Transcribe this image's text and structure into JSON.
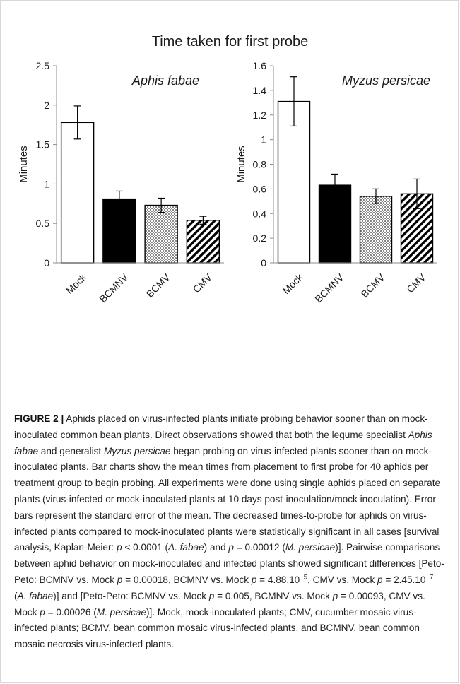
{
  "figure_title": "Time taken for first probe",
  "chart_data": [
    {
      "type": "bar",
      "title": "Aphis fabae",
      "ylabel": "Minutes",
      "xlabel": "",
      "categories": [
        "Mock",
        "BCMNV",
        "BCMV",
        "CMV"
      ],
      "values": [
        1.78,
        0.81,
        0.73,
        0.54
      ],
      "error": [
        0.21,
        0.1,
        0.09,
        0.05
      ],
      "ylim": [
        0,
        2.5
      ],
      "yticks": [
        "0",
        "0.5",
        "1",
        "1.5",
        "2",
        "2.5"
      ],
      "ytick_values": [
        0,
        0.5,
        1,
        1.5,
        2,
        2.5
      ],
      "fills": [
        "white",
        "solid black",
        "dotted",
        "diagonal hatch"
      ],
      "grid": false
    },
    {
      "type": "bar",
      "title": "Myzus persicae",
      "ylabel": "Minutes",
      "xlabel": "",
      "categories": [
        "Mock",
        "BCMNV",
        "BCMV",
        "CMV"
      ],
      "values": [
        1.31,
        0.63,
        0.54,
        0.56
      ],
      "error": [
        0.2,
        0.09,
        0.06,
        0.12
      ],
      "ylim": [
        0,
        1.6
      ],
      "yticks": [
        "0",
        "0.2",
        "0.4",
        "0.6",
        "0.8",
        "1",
        "1.2",
        "1.4",
        "1.6"
      ],
      "ytick_values": [
        0,
        0.2,
        0.4,
        0.6,
        0.8,
        1,
        1.2,
        1.4,
        1.6
      ],
      "fills": [
        "white",
        "solid black",
        "dotted",
        "diagonal hatch"
      ],
      "grid": false
    }
  ],
  "caption": {
    "label": "FIGURE 2 |",
    "parts": [
      {
        "t": " Aphids placed on virus-infected plants initiate probing behavior sooner than on mock-inoculated common bean plants. Direct observations showed that both the legume specialist "
      },
      {
        "t": "Aphis fabae",
        "i": true
      },
      {
        "t": " and generalist "
      },
      {
        "t": "Myzus persicae",
        "i": true
      },
      {
        "t": " began probing on virus-infected plants sooner than on mock-inoculated plants. Bar charts show the mean times from placement to first probe for 40 aphids per treatment group to begin probing. All experiments were done using single aphids placed on separate plants (virus-infected or mock-inoculated plants at 10 days post-inoculation/mock inoculation). Error bars represent the standard error of the mean. The decreased times-to-probe for aphids on virus-infected plants compared to mock-inoculated plants were statistically significant in all cases [survival analysis, Kaplan-Meier: "
      },
      {
        "t": "p",
        "i": true
      },
      {
        "t": " < 0.0001 ("
      },
      {
        "t": "A. fabae",
        "i": true
      },
      {
        "t": ") and "
      },
      {
        "t": "p",
        "i": true
      },
      {
        "t": " = 0.00012 ("
      },
      {
        "t": "M. persicae",
        "i": true
      },
      {
        "t": ")]. Pairwise comparisons between aphid behavior on mock-inoculated and infected plants showed significant differences [Peto-Peto: BCMNV vs. Mock "
      },
      {
        "t": "p",
        "i": true
      },
      {
        "t": " = 0.00018, BCMNV vs. Mock "
      },
      {
        "t": "p",
        "i": true
      },
      {
        "t": " = 4.88.10"
      },
      {
        "t": "−5",
        "sup": true
      },
      {
        "t": ", CMV vs. Mock "
      },
      {
        "t": "p",
        "i": true
      },
      {
        "t": " = 2.45.10"
      },
      {
        "t": "−7",
        "sup": true
      },
      {
        "t": " ("
      },
      {
        "t": "A. fabae",
        "i": true
      },
      {
        "t": ")] and [Peto-Peto: BCMNV vs. Mock "
      },
      {
        "t": "p",
        "i": true
      },
      {
        "t": " = 0.005, BCMNV vs. Mock "
      },
      {
        "t": "p",
        "i": true
      },
      {
        "t": " = 0.00093, CMV vs. Mock "
      },
      {
        "t": "p",
        "i": true
      },
      {
        "t": " = 0.00026 ("
      },
      {
        "t": "M. persicae",
        "i": true
      },
      {
        "t": ")]. Mock, mock-inoculated plants; CMV, cucumber mosaic virus-infected plants; BCMV, bean common mosaic virus-infected plants, and BCMNV, bean common mosaic necrosis virus-infected plants."
      }
    ]
  }
}
